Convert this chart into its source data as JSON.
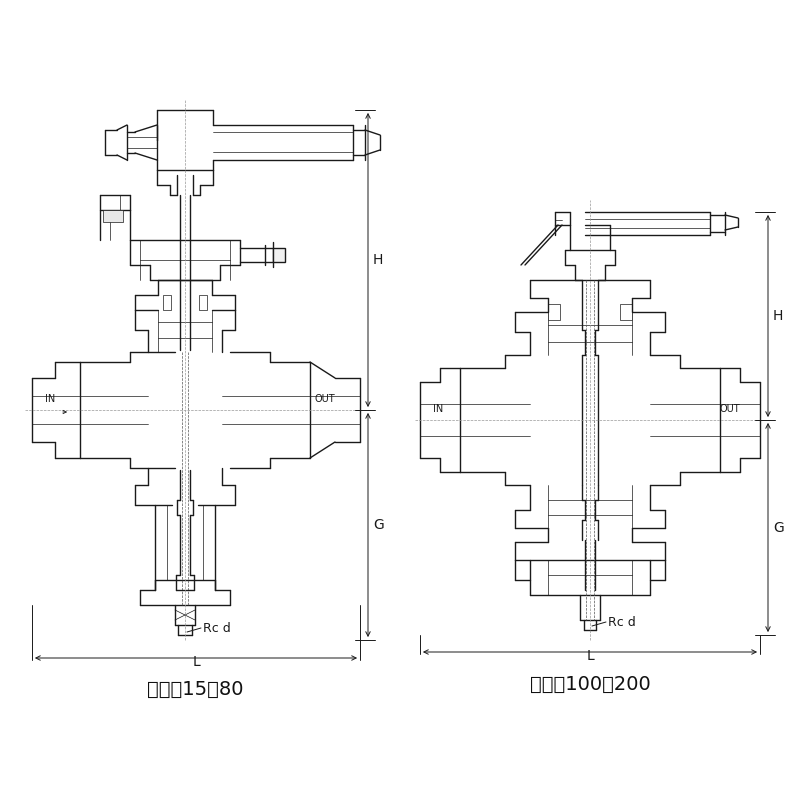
{
  "bg_color": "#ffffff",
  "line_color": "#1a1a1a",
  "dim_color": "#1a1a1a",
  "gray_line": "#666666",
  "label1": "呼び彄15～80",
  "label2": "呼び彄100～200",
  "H_label": "H",
  "G_label": "G",
  "L_label": "L",
  "Rcd_label": "Rc d",
  "IN_label": "IN",
  "OUT_label": "OUT",
  "title_fontsize": 14,
  "dim_fontsize": 10,
  "annot_fontsize": 8,
  "lw_main": 1.0,
  "lw_thin": 0.5,
  "lw_dim": 0.7
}
